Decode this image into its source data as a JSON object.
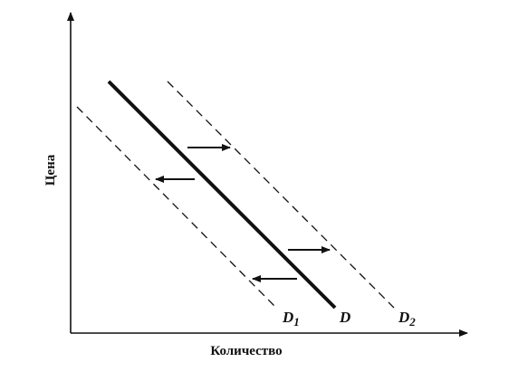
{
  "axes": {
    "y_label": "Цена",
    "x_label": "Количество"
  },
  "curves": [
    {
      "letter": "D",
      "subscript": "1"
    },
    {
      "letter": "D"
    },
    {
      "letter": "D",
      "subscript": "2"
    }
  ]
}
